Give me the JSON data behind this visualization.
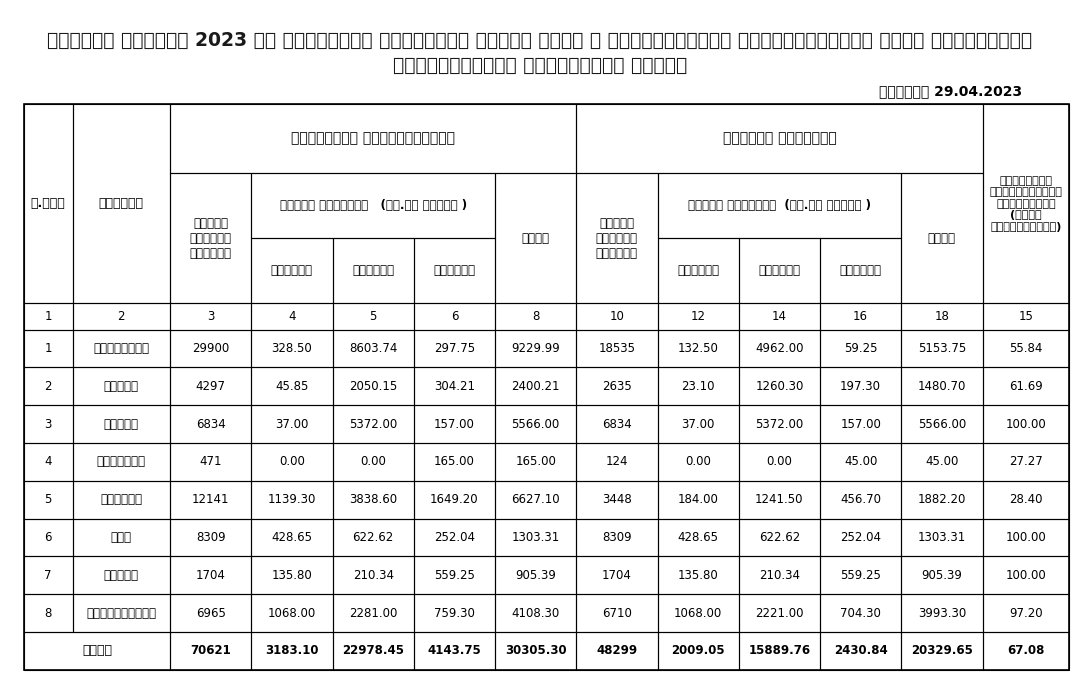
{
  "title_line1": "दिनांक एप्रिल 2023 या कालावधीत झालेल्या अवेळी पाऊस व गारपिटीमुळे नुकसानग्रस्त शेती पिकांच्या",
  "title_line2": "पंचनाम्याचा सधिस्थिती अहवाल",
  "date_label": "दिनांक 29.04.2023",
  "header_primary1": "प्राथमिक अहवालानुसार",
  "header_primary2": "झालेले पंचनामे",
  "header_badhet_kshetra1": "बाधित क्षेत्र   (हे.आर मध्ये )",
  "header_badhet_kshetra2": "बाधित क्षेत्र  (हे.आर मध्ये )",
  "col_headers": [
    "अ.क्र",
    "जिल्हा",
    "बाधित\nशेतकरी\nसंख्या",
    "जिरायत",
    "बागायत",
    "फळपिके",
    "एकूण",
    "बाधित\nशेतकरी\nसंख्या",
    "जिरायत",
    "बागायत",
    "फळपिके",
    "एकूण",
    "झालेल्या\nपंचनाम्याची\nटक्केवारी\n(एकूण\nक्षेत्राशी)"
  ],
  "col_numbers": [
    "1",
    "2",
    "3",
    "4",
    "5",
    "6",
    "8",
    "10",
    "12",
    "14",
    "16",
    "18",
    "15"
  ],
  "rows": [
    [
      "1",
      "औरंगाबाद",
      "29900",
      "328.50",
      "8603.74",
      "297.75",
      "9229.99",
      "18535",
      "132.50",
      "4962.00",
      "59.25",
      "5153.75",
      "55.84"
    ],
    [
      "2",
      "जालना",
      "4297",
      "45.85",
      "2050.15",
      "304.21",
      "2400.21",
      "2635",
      "23.10",
      "1260.30",
      "197.30",
      "1480.70",
      "61.69"
    ],
    [
      "3",
      "परभणी",
      "6834",
      "37.00",
      "5372.00",
      "157.00",
      "5566.00",
      "6834",
      "37.00",
      "5372.00",
      "157.00",
      "5566.00",
      "100.00"
    ],
    [
      "4",
      "हिंगोली",
      "471",
      "0.00",
      "0.00",
      "165.00",
      "165.00",
      "124",
      "0.00",
      "0.00",
      "45.00",
      "45.00",
      "27.27"
    ],
    [
      "5",
      "नांदेड",
      "12141",
      "1139.30",
      "3838.60",
      "1649.20",
      "6627.10",
      "3448",
      "184.00",
      "1241.50",
      "456.70",
      "1882.20",
      "28.40"
    ],
    [
      "6",
      "बीड",
      "8309",
      "428.65",
      "622.62",
      "252.04",
      "1303.31",
      "8309",
      "428.65",
      "622.62",
      "252.04",
      "1303.31",
      "100.00"
    ],
    [
      "7",
      "लातूर",
      "1704",
      "135.80",
      "210.34",
      "559.25",
      "905.39",
      "1704",
      "135.80",
      "210.34",
      "559.25",
      "905.39",
      "100.00"
    ],
    [
      "8",
      "उस्मानाबाद",
      "6965",
      "1068.00",
      "2281.00",
      "759.30",
      "4108.30",
      "6710",
      "1068.00",
      "2221.00",
      "704.30",
      "3993.30",
      "97.20"
    ]
  ],
  "total_row": [
    "एकूण",
    "",
    "70621",
    "3183.10",
    "22978.45",
    "4143.75",
    "30305.30",
    "48299",
    "2009.05",
    "15889.76",
    "2430.84",
    "20329.65",
    "67.08"
  ],
  "bg_color": "#ffffff",
  "header_bg": "#ffffff",
  "border_color": "#000000",
  "text_color": "#000000",
  "title_color": "#1a1a1a"
}
